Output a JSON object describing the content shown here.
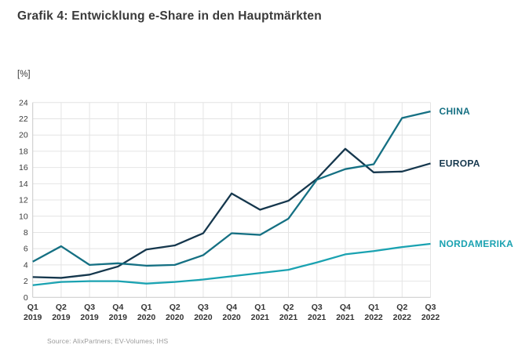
{
  "page": {
    "title": "Grafik 4: Entwicklung e-Share in den Hauptmärkten",
    "unit_label": "[%]",
    "source": "Source: AlixPartners; EV-Volumes; IHS"
  },
  "colors": {
    "title_text": "#3a3a3a",
    "gridline": "#e4e4e4",
    "axis_line": "#c9c9c9",
    "y_tick_text": "#3b3b3b",
    "x_tick_text": "#333333",
    "source_text": "#9a9a9a"
  },
  "chart_data": {
    "type": "line",
    "title": "Grafik 4: Entwicklung e-Share in den Hauptmärkten",
    "xlabel": "",
    "ylabel": "[%]",
    "ylim": [
      0,
      24
    ],
    "yticks": [
      0,
      2,
      4,
      6,
      8,
      10,
      12,
      14,
      16,
      18,
      20,
      22,
      24
    ],
    "grid": "horizontal and vertical light gray gridlines",
    "legend_position": "right end of each line",
    "categories": [
      "Q1 2019",
      "Q2 2019",
      "Q3 2019",
      "Q4 2019",
      "Q1 2020",
      "Q2 2020",
      "Q3 2020",
      "Q4 2020",
      "Q1 2021",
      "Q2 2021",
      "Q3 2021",
      "Q4 2021",
      "Q1 2022",
      "Q2 2022",
      "Q3 2022"
    ],
    "series": [
      {
        "name": "NORDAMERIKA",
        "color": "#1aa2b1",
        "values": [
          1.5,
          1.9,
          2.0,
          2.0,
          1.7,
          1.9,
          2.2,
          2.6,
          3.0,
          3.4,
          4.3,
          5.3,
          5.7,
          6.2,
          6.6
        ]
      },
      {
        "name": "EUROPA",
        "color": "#15374d",
        "values": [
          2.5,
          2.4,
          2.8,
          3.8,
          5.9,
          6.4,
          7.9,
          12.8,
          10.8,
          11.9,
          14.6,
          18.3,
          15.4,
          15.5,
          16.5
        ]
      },
      {
        "name": "CHINA",
        "color": "#157083",
        "values": [
          4.4,
          6.3,
          4.0,
          4.2,
          3.9,
          4.0,
          5.2,
          7.9,
          7.7,
          9.7,
          14.5,
          15.8,
          16.4,
          22.1,
          22.9
        ]
      }
    ]
  }
}
